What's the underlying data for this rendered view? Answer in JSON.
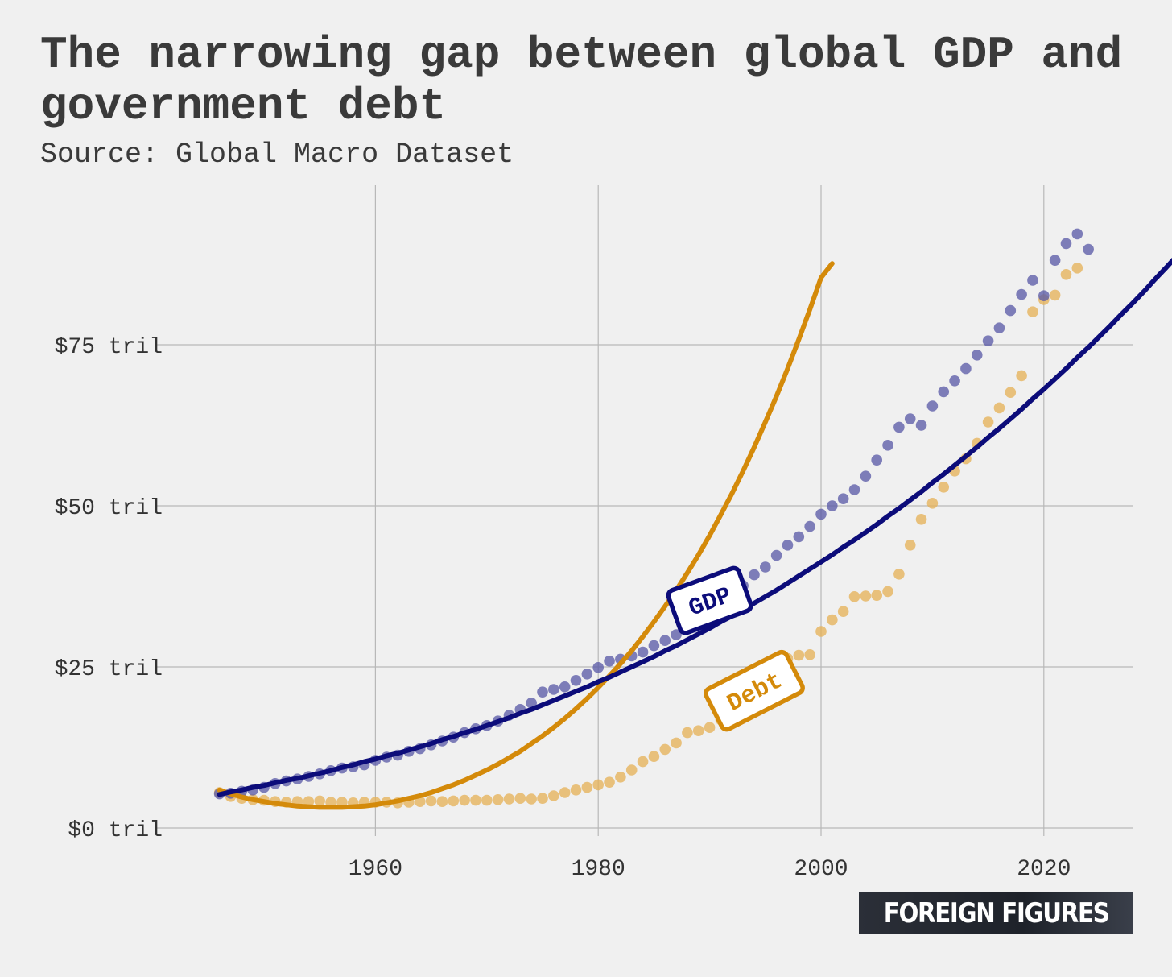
{
  "title": "The narrowing gap between global GDP and government debt",
  "subtitle": "Source: Global Macro Dataset",
  "brand": "FOREIGN FIGURES",
  "colors": {
    "gdp": "#0c0c7a",
    "gdp_points": "#5c5ca8",
    "debt": "#d48a0a",
    "debt_points": "#e6b25a",
    "grid": "#b8b8b8",
    "background": "#f0f0f0"
  },
  "chart_data": {
    "type": "scatter",
    "title": "The narrowing gap between global GDP and government debt",
    "subtitle": "Source: Global Macro Dataset",
    "xlabel": "",
    "ylabel": "",
    "xlim": [
      1942,
      2028
    ],
    "ylim": [
      0,
      97
    ],
    "x_ticks": [
      1960,
      1980,
      2000,
      2020
    ],
    "x_tick_labels": [
      "1960",
      "1980",
      "2000",
      "2020"
    ],
    "y_ticks": [
      0,
      25,
      50,
      75
    ],
    "y_tick_labels": [
      "$0 tril",
      "$25 tril",
      "$50 tril",
      "$75 tril"
    ],
    "grid": true,
    "legend": "inline-labels",
    "series": [
      {
        "name": "GDP",
        "start_year": 1946,
        "points": [
          5.3,
          5.4,
          5.7,
          5.9,
          6.3,
          6.9,
          7.3,
          7.6,
          8.0,
          8.4,
          8.9,
          9.3,
          9.5,
          9.8,
          10.5,
          11.0,
          11.3,
          11.9,
          12.3,
          12.9,
          13.5,
          14.1,
          14.8,
          15.4,
          15.9,
          16.6,
          17.5,
          18.4,
          19.4,
          21.1,
          21.5,
          21.9,
          22.9,
          23.9,
          24.9,
          25.9,
          26.2,
          26.7,
          27.3,
          28.3,
          29.1,
          30.0,
          31.2,
          32.3,
          33.6,
          34.9,
          36.3,
          37.6,
          39.3,
          40.5,
          42.3,
          43.9,
          45.2,
          46.8,
          48.7,
          50.0,
          51.1,
          52.5,
          54.6,
          57.1,
          59.4,
          62.2,
          63.5,
          62.5,
          65.5,
          67.7,
          69.4,
          71.3,
          73.4,
          75.6,
          77.6,
          80.3,
          82.8,
          85.0,
          82.6,
          88.1,
          90.7,
          92.2,
          89.8
        ],
        "trend": [
          5.2,
          5.6,
          5.9,
          6.3,
          6.6,
          7.0,
          7.4,
          7.7,
          8.1,
          8.5,
          8.9,
          9.4,
          9.8,
          10.3,
          10.7,
          11.2,
          11.6,
          12.1,
          12.6,
          13.1,
          13.7,
          14.2,
          14.8,
          15.3,
          15.9,
          16.5,
          17.1,
          17.8,
          18.4,
          19.1,
          19.8,
          20.5,
          21.2,
          21.9,
          22.7,
          23.4,
          24.2,
          25.0,
          25.8,
          26.6,
          27.5,
          28.3,
          29.2,
          30.1,
          31.0,
          32.0,
          32.9,
          33.9,
          34.9,
          35.9,
          36.9,
          38.0,
          39.1,
          40.2,
          41.3,
          42.4,
          43.6,
          44.7,
          45.9,
          47.1,
          48.4,
          49.6,
          50.9,
          52.2,
          53.6,
          54.9,
          56.3,
          57.7,
          59.1,
          60.6,
          62.0,
          63.5,
          65.0,
          66.6,
          68.1,
          69.7,
          71.3,
          73.0,
          74.6,
          76.3,
          78.0,
          79.8,
          81.5,
          83.3,
          85.2,
          87.0,
          88.9,
          90.8,
          92.7,
          94.6
        ]
      },
      {
        "name": "Debt",
        "start_year": 1946,
        "points": [
          5.5,
          4.9,
          4.6,
          4.4,
          4.3,
          4.1,
          4.0,
          4.1,
          4.1,
          4.2,
          4.0,
          4.0,
          3.9,
          4.0,
          4.0,
          4.0,
          3.9,
          4.0,
          4.1,
          4.2,
          4.1,
          4.2,
          4.3,
          4.3,
          4.3,
          4.4,
          4.5,
          4.6,
          4.5,
          4.6,
          5.0,
          5.5,
          5.9,
          6.3,
          6.7,
          7.1,
          7.9,
          9.0,
          10.3,
          11.1,
          12.2,
          13.2,
          14.8,
          15.1,
          15.6,
          16.8,
          18.2,
          19.7,
          21.5,
          23.0,
          24.7,
          26.3,
          26.8,
          26.9,
          30.5,
          32.3,
          33.6,
          35.9,
          36.0,
          36.1,
          36.7,
          39.4,
          43.9,
          47.9,
          50.4,
          52.9,
          55.4,
          57.3,
          59.7,
          63.0,
          65.2,
          67.6,
          70.2,
          80.1,
          82.0,
          82.7,
          85.9,
          86.9
        ],
        "trend": [
          5.9,
          5.3,
          4.8,
          4.4,
          4.1,
          3.8,
          3.6,
          3.4,
          3.3,
          3.2,
          3.2,
          3.2,
          3.3,
          3.4,
          3.6,
          3.9,
          4.2,
          4.6,
          5.0,
          5.5,
          6.1,
          6.7,
          7.4,
          8.2,
          9.0,
          9.9,
          10.9,
          11.9,
          13.1,
          14.3,
          15.6,
          17.0,
          18.5,
          20.1,
          21.8,
          23.6,
          25.5,
          27.5,
          29.7,
          32.0,
          34.4,
          36.9,
          39.6,
          42.4,
          45.4,
          48.6,
          51.9,
          55.4,
          59.1,
          63.0,
          67.0,
          71.3,
          75.8,
          80.5,
          85.4,
          87.6
        ]
      }
    ],
    "labels": [
      {
        "text": "GDP",
        "x": 1990,
        "y": 35.3,
        "angle": -20
      },
      {
        "text": "Debt",
        "x": 1994,
        "y": 21.3,
        "angle": -27
      }
    ]
  }
}
